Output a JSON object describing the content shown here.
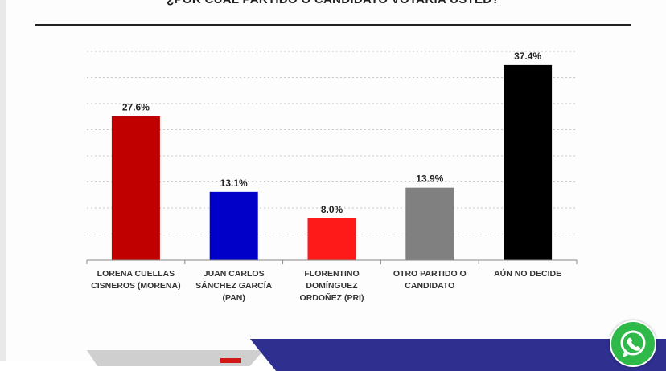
{
  "title": "¿POR CUÁL PARTIDO O CANDIDATO VOTARÍA USTED?",
  "chart_data": {
    "type": "bar",
    "title": "¿POR CUÁL PARTIDO O CANDIDATO VOTARÍA USTED?",
    "categories": [
      [
        "LORENA CUELLAS",
        "CISNEROS (MORENA)"
      ],
      [
        "JUAN CARLOS",
        "SÁNCHEZ GARCÍA",
        "(PAN)"
      ],
      [
        "FLORENTINO",
        "DOMÍNGUEZ",
        "ORDOÑEZ (PRI)"
      ],
      [
        "OTRO PARTIDO O",
        "CANDIDATO"
      ],
      [
        "AÚN NO DECIDE"
      ]
    ],
    "values": [
      27.6,
      13.1,
      8.0,
      13.9,
      37.4
    ],
    "value_labels": [
      "27.6%",
      "13.1%",
      "8.0%",
      "13.9%",
      "37.4%"
    ],
    "colors": [
      "#c00000",
      "#0000c8",
      "#ff1a1a",
      "#808080",
      "#000000"
    ],
    "ylim": [
      0,
      40
    ],
    "grid": true,
    "xlabel": "",
    "ylabel": ""
  },
  "icons": {
    "whatsapp": "whatsapp-icon"
  }
}
